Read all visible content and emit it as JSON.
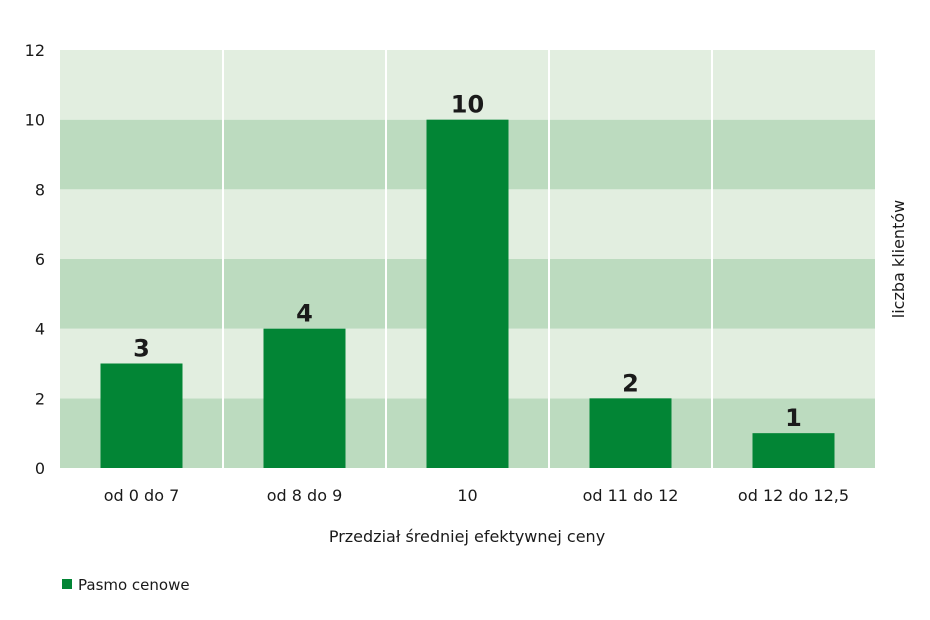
{
  "colors": {
    "bar": "#028535",
    "band_light": "#e2eee0",
    "band_dark": "#bcdbbf",
    "gridline": "#ffffff"
  },
  "chart_data": {
    "type": "bar",
    "categories": [
      "od 0 do 7",
      "od 8 do 9",
      "10",
      "od 11 do 12",
      "od 12 do 12,5"
    ],
    "series": [
      {
        "name": "Pasmo cenowe",
        "values": [
          3,
          4,
          10,
          2,
          1
        ]
      }
    ],
    "data_labels": [
      "3",
      "4",
      "10",
      "2",
      "1"
    ],
    "xlabel": "Przedział średniej efektywnej ceny",
    "ylabel": "liczba klientów",
    "ylim": [
      0,
      12
    ],
    "yticks": [
      "0",
      "2",
      "4",
      "6",
      "8",
      "10",
      "12"
    ],
    "legend": {
      "position": "bottom-left",
      "label": "Pasmo cenowe"
    },
    "grid": true
  }
}
